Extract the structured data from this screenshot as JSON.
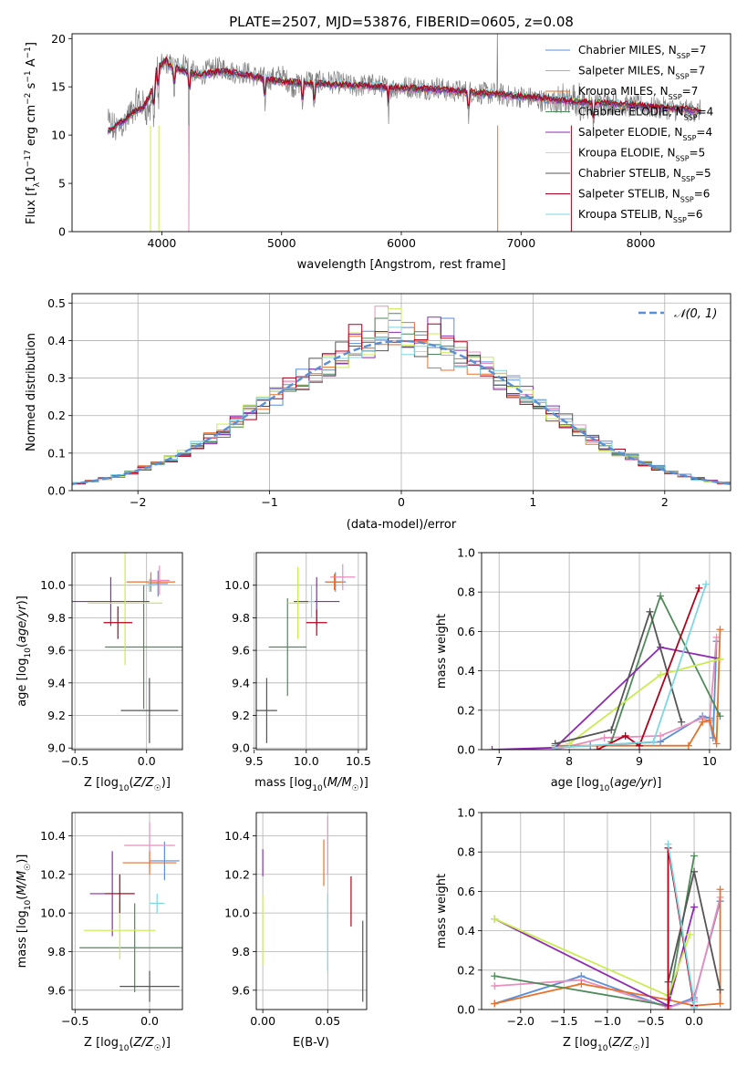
{
  "title": "PLATE=2507, MJD=53876, FIBERID=0605, z=0.08",
  "series_styles": [
    {
      "name": "Chabrier MILES, N_SSP=7",
      "color": "#5a8fd6"
    },
    {
      "name": "Salpeter MILES, N_SSP=7",
      "color": "#e98fbe"
    },
    {
      "name": "Kroupa MILES, N_SSP=7",
      "color": "#e8722a"
    },
    {
      "name": "Chabrier ELODIE, N_SSP=4",
      "color": "#4e8a5a"
    },
    {
      "name": "Salpeter ELODIE, N_SSP=4",
      "color": "#8e2bb0"
    },
    {
      "name": "Kroupa ELODIE, N_SSP=5",
      "color": "#c9ec4f"
    },
    {
      "name": "Chabrier STELIB, N_SSP=5",
      "color": "#555555"
    },
    {
      "name": "Salpeter STELIB, N_SSP=6",
      "color": "#b3001b"
    },
    {
      "name": "Kroupa STELIB, N_SSP=6",
      "color": "#7fd6e0"
    }
  ],
  "chart_data": [
    {
      "id": "spectrum",
      "type": "line",
      "xlabel": "wavelength [Angstrom, rest frame]",
      "ylabel": "Flux [f_λ 10^-17 erg cm^-2 s^-1 A^-1]",
      "xlim": [
        3250,
        8750
      ],
      "ylim": [
        0,
        20.5
      ],
      "xticks": [
        4000,
        5000,
        6000,
        7000,
        8000
      ],
      "yticks": [
        0,
        5,
        10,
        15,
        20
      ],
      "legend_placement": "right",
      "legend": [
        {
          "label": "Chabrier MILES, N",
          "sub": "SSP",
          "tail": "=7"
        },
        {
          "label": "Salpeter MILES, N",
          "sub": "SSP",
          "tail": "=7"
        },
        {
          "label": "Kroupa MILES, N",
          "sub": "SSP",
          "tail": "=7"
        },
        {
          "label": "Chabrier ELODIE, N",
          "sub": "SSP",
          "tail": "=4"
        },
        {
          "label": "Salpeter ELODIE, N",
          "sub": "SSP",
          "tail": "=4"
        },
        {
          "label": "Kroupa ELODIE, N",
          "sub": "SSP",
          "tail": "=5"
        },
        {
          "label": "Chabrier STELIB, N",
          "sub": "SSP",
          "tail": "=5"
        },
        {
          "label": "Salpeter STELIB, N",
          "sub": "SSP",
          "tail": "=6"
        },
        {
          "label": "Kroupa STELIB, N",
          "sub": "SSP",
          "tail": "=6"
        }
      ],
      "data_outline": {
        "x": [
          3550,
          3600,
          3700,
          3800,
          3900,
          3950,
          4000,
          4050,
          4100,
          4200,
          4300,
          4400,
          4500,
          4600,
          4700,
          4800,
          4900,
          5000,
          5100,
          5200,
          5300,
          5400,
          5500,
          5600,
          5700,
          5800,
          5900,
          6000,
          6100,
          6200,
          6300,
          6400,
          6500,
          6600,
          6700,
          6800,
          6900,
          7000,
          7100,
          7200,
          7300,
          7400,
          7500,
          7600,
          7700,
          7800,
          7900,
          8000,
          8100,
          8200,
          8300,
          8400,
          8500
        ],
        "y": [
          11.5,
          10.5,
          11.5,
          13.5,
          12.5,
          16.0,
          17.0,
          17.5,
          17.0,
          17.5,
          16.0,
          16.8,
          17.0,
          16.5,
          16.5,
          16.0,
          15.8,
          16.2,
          15.0,
          15.8,
          15.5,
          15.5,
          15.4,
          15.0,
          15.2,
          15.2,
          14.8,
          15.0,
          15.0,
          14.8,
          15.0,
          14.5,
          14.6,
          14.5,
          14.3,
          14.3,
          14.0,
          14.0,
          13.8,
          13.5,
          13.5,
          13.5,
          13.4,
          13.3,
          13.3,
          13.2,
          13.0,
          13.0,
          12.8,
          12.8,
          12.6,
          12.5,
          12.5
        ]
      },
      "model_outline": {
        "x": [
          3550,
          3650,
          3750,
          3850,
          3950,
          4050,
          4150,
          4300,
          4500,
          4700,
          4900,
          5100,
          5300,
          5500,
          5700,
          5900,
          6100,
          6300,
          6500,
          6700,
          6900,
          7100,
          7300,
          7500,
          7700,
          7900,
          8100,
          8300,
          8500
        ],
        "y": [
          11.0,
          11.8,
          12.8,
          13.5,
          16.0,
          17.2,
          16.8,
          16.2,
          16.6,
          16.2,
          15.7,
          15.4,
          15.3,
          15.2,
          15.1,
          14.9,
          14.8,
          14.7,
          14.5,
          14.3,
          14.1,
          13.9,
          13.6,
          13.4,
          13.3,
          13.1,
          12.9,
          12.7,
          12.5
        ]
      }
    },
    {
      "id": "residuals",
      "type": "histogram",
      "xlabel": "(data-model)/error",
      "ylabel": "Normed distribution",
      "xlim": [
        -2.5,
        2.5
      ],
      "ylim": [
        0,
        0.525
      ],
      "xticks": [
        -2,
        -1,
        0,
        1,
        2
      ],
      "yticks": [
        0.0,
        0.1,
        0.2,
        0.3,
        0.4,
        0.5
      ],
      "grid": true,
      "legend_placement": "top-right",
      "reference_curve": {
        "name": "N(0,1)",
        "label": "𝒩(0, 1)",
        "color": "#5a8fd6"
      }
    },
    {
      "id": "age-vs-Z",
      "type": "errorbar",
      "xlabel": "Z [log10(Z/Z☉)]",
      "ylabel": "age [log10(age/yr)]",
      "xlim": [
        -0.52,
        0.25
      ],
      "ylim": [
        8.99,
        10.2
      ],
      "xticks": [
        -0.5,
        0.0
      ],
      "yticks": [
        9.0,
        9.2,
        9.4,
        9.6,
        9.8,
        10.0
      ],
      "grid": true,
      "points": [
        {
          "series": 0,
          "x": 0.08,
          "xerr": 0.07,
          "y": 10.01,
          "yerr": 0.08
        },
        {
          "series": 1,
          "x": 0.09,
          "xerr": 0.07,
          "y": 10.03,
          "yerr": 0.09
        },
        {
          "series": 2,
          "x": 0.03,
          "xerr": 0.17,
          "y": 10.02,
          "yerr": 0.06
        },
        {
          "series": 3,
          "x": -0.02,
          "xerr": 0.27,
          "y": 9.62,
          "yerr": 0.38
        },
        {
          "series": 4,
          "x": -0.25,
          "xerr": 0.27,
          "y": 9.9,
          "yerr": 0.15
        },
        {
          "series": 5,
          "x": -0.15,
          "xerr": 0.26,
          "y": 9.89,
          "yerr": 0.38
        },
        {
          "series": 6,
          "x": 0.02,
          "xerr": 0.2,
          "y": 9.23,
          "yerr": 0.2
        },
        {
          "series": 7,
          "x": -0.2,
          "xerr": 0.1,
          "y": 9.77,
          "yerr": 0.1
        },
        {
          "series": 8,
          "x": 0.02,
          "xerr": 0.04,
          "y": 10.0,
          "yerr": 0.04
        }
      ]
    },
    {
      "id": "age-vs-mass",
      "type": "errorbar",
      "xlabel": "mass [log10(M/M☉)]",
      "ylabel": "",
      "xlim": [
        9.52,
        10.58
      ],
      "ylim": [
        8.99,
        10.2
      ],
      "xticks": [
        9.5,
        10.0,
        10.5
      ],
      "yticks": [
        9.0,
        9.2,
        9.4,
        9.6,
        9.8,
        10.0
      ],
      "grid": true,
      "points": [
        {
          "series": 0,
          "x": 10.28,
          "xerr": 0.1,
          "y": 10.02,
          "yerr": 0.06
        },
        {
          "series": 1,
          "x": 10.35,
          "xerr": 0.12,
          "y": 10.05,
          "yerr": 0.08
        },
        {
          "series": 2,
          "x": 10.27,
          "xerr": 0.08,
          "y": 10.02,
          "yerr": 0.05
        },
        {
          "series": 3,
          "x": 9.82,
          "xerr": 0.18,
          "y": 9.62,
          "yerr": 0.3
        },
        {
          "series": 4,
          "x": 10.1,
          "xerr": 0.22,
          "y": 9.9,
          "yerr": 0.15
        },
        {
          "series": 5,
          "x": 9.92,
          "xerr": 0.1,
          "y": 9.89,
          "yerr": 0.22
        },
        {
          "series": 6,
          "x": 9.62,
          "xerr": 0.1,
          "y": 9.23,
          "yerr": 0.2
        },
        {
          "series": 7,
          "x": 10.1,
          "xerr": 0.1,
          "y": 9.77,
          "yerr": 0.08
        },
        {
          "series": 8,
          "x": 10.05,
          "xerr": 0.03,
          "y": 9.9,
          "yerr": 0.1
        }
      ]
    },
    {
      "id": "massweight-vs-age",
      "type": "line",
      "xlabel": "age [log10(age/yr)]",
      "ylabel": "mass weight",
      "xlim": [
        6.75,
        10.3
      ],
      "ylim": [
        0,
        1.0
      ],
      "xticks": [
        7,
        8,
        9,
        10
      ],
      "yticks": [
        0.0,
        0.2,
        0.4,
        0.6,
        0.8,
        1.0
      ],
      "grid": true,
      "series": [
        {
          "series": 0,
          "x": [
            7.8,
            8.3,
            9.3,
            9.9,
            10.0,
            10.05,
            10.1
          ],
          "y": [
            0.01,
            0.02,
            0.04,
            0.17,
            0.16,
            0.06,
            0.55
          ]
        },
        {
          "series": 1,
          "x": [
            7.8,
            8.5,
            9.3,
            9.9,
            10.0,
            10.1
          ],
          "y": [
            0.0,
            0.06,
            0.07,
            0.16,
            0.14,
            0.57
          ]
        },
        {
          "series": 2,
          "x": [
            7.8,
            9.7,
            9.9,
            10.0,
            10.1,
            10.15
          ],
          "y": [
            0.02,
            0.02,
            0.14,
            0.15,
            0.03,
            0.61
          ]
        },
        {
          "series": 3,
          "x": [
            8.6,
            9.3,
            10.15
          ],
          "y": [
            0.04,
            0.78,
            0.17
          ]
        },
        {
          "series": 4,
          "x": [
            6.9,
            7.8,
            9.3,
            10.15
          ],
          "y": [
            0.0,
            0.01,
            0.52,
            0.46
          ]
        },
        {
          "series": 5,
          "x": [
            8.0,
            9.3,
            10.15
          ],
          "y": [
            0.03,
            0.38,
            0.46
          ]
        },
        {
          "series": 6,
          "x": [
            7.8,
            8.6,
            9.15,
            9.6
          ],
          "y": [
            0.03,
            0.1,
            0.7,
            0.14
          ]
        },
        {
          "series": 7,
          "x": [
            8.4,
            8.8,
            9.0,
            9.85
          ],
          "y": [
            0.0,
            0.07,
            0.02,
            0.82
          ]
        },
        {
          "series": 8,
          "x": [
            7.8,
            9.2,
            9.95
          ],
          "y": [
            0.01,
            0.04,
            0.84
          ]
        }
      ]
    },
    {
      "id": "mass-vs-Z",
      "type": "errorbar",
      "xlabel": "Z [log10(Z/Z☉)]",
      "ylabel": "mass [log10(M/M☉)]",
      "xlim": [
        -0.52,
        0.22
      ],
      "ylim": [
        9.5,
        10.52
      ],
      "xticks": [
        -0.5,
        0.0
      ],
      "yticks": [
        9.6,
        9.8,
        10.0,
        10.2,
        10.4
      ],
      "grid": true,
      "points": [
        {
          "series": 0,
          "x": 0.1,
          "xerr": 0.1,
          "y": 10.27,
          "yerr": 0.1
        },
        {
          "series": 1,
          "x": 0.0,
          "xerr": 0.17,
          "y": 10.35,
          "yerr": 0.12
        },
        {
          "series": 2,
          "x": 0.0,
          "xerr": 0.18,
          "y": 10.26,
          "yerr": 0.06
        },
        {
          "series": 3,
          "x": -0.1,
          "xerr": 0.37,
          "y": 9.82,
          "yerr": 0.23
        },
        {
          "series": 4,
          "x": -0.25,
          "xerr": 0.15,
          "y": 10.1,
          "yerr": 0.22
        },
        {
          "series": 5,
          "x": -0.2,
          "xerr": 0.24,
          "y": 9.91,
          "yerr": 0.15
        },
        {
          "series": 6,
          "x": 0.0,
          "xerr": 0.2,
          "y": 9.62,
          "yerr": 0.08
        },
        {
          "series": 7,
          "x": -0.2,
          "xerr": 0.1,
          "y": 10.1,
          "yerr": 0.1
        },
        {
          "series": 8,
          "x": 0.05,
          "xerr": 0.05,
          "y": 10.05,
          "yerr": 0.05
        }
      ]
    },
    {
      "id": "mass-vs-EBV",
      "type": "errorbar",
      "xlabel": "E(B-V)",
      "ylabel": "",
      "xlim": [
        -0.005,
        0.08
      ],
      "ylim": [
        9.5,
        10.52
      ],
      "xticks": [
        0.0,
        0.05
      ],
      "yticks": [
        9.6,
        9.8,
        10.0,
        10.2,
        10.4
      ],
      "grid": true,
      "points": [
        {
          "series": 4,
          "x": 0.0,
          "y": 10.26,
          "yerr": 0.07
        },
        {
          "series": 5,
          "x": 0.0,
          "y": 9.91,
          "yerr": 0.18
        },
        {
          "series": 2,
          "x": 0.047,
          "y": 10.26,
          "yerr": 0.12
        },
        {
          "series": 1,
          "x": 0.05,
          "y": 10.35,
          "yerr": 0.15
        },
        {
          "series": 8,
          "x": 0.05,
          "y": 9.9,
          "yerr": 0.2
        },
        {
          "series": 7,
          "x": 0.068,
          "y": 10.06,
          "yerr": 0.13
        },
        {
          "series": 6,
          "x": 0.077,
          "y": 9.75,
          "yerr": 0.21
        }
      ]
    },
    {
      "id": "massweight-vs-Z",
      "type": "line",
      "xlabel": "Z [log10(Z/Z☉)]",
      "ylabel": "mass weight",
      "xlim": [
        -2.45,
        0.42
      ],
      "ylim": [
        0,
        1.0
      ],
      "xticks": [
        -2.0,
        -1.5,
        -1.0,
        -0.5,
        0.0
      ],
      "yticks": [
        0.0,
        0.2,
        0.4,
        0.6,
        0.8,
        1.0
      ],
      "grid": true,
      "series": [
        {
          "series": 0,
          "x": [
            -2.3,
            -1.3,
            -0.3,
            0.0,
            0.3
          ],
          "y": [
            0.03,
            0.17,
            0.01,
            0.06,
            0.55
          ]
        },
        {
          "series": 1,
          "x": [
            -2.3,
            -1.3,
            -0.3,
            0.0,
            0.3
          ],
          "y": [
            0.12,
            0.15,
            0.01,
            0.05,
            0.57
          ]
        },
        {
          "series": 2,
          "x": [
            -2.3,
            -1.3,
            -0.3,
            0.0,
            0.3,
            0.3
          ],
          "y": [
            0.03,
            0.13,
            0.05,
            0.02,
            0.03,
            0.61
          ]
        },
        {
          "series": 3,
          "x": [
            -2.3,
            -0.3,
            0.0
          ],
          "y": [
            0.17,
            0.02,
            0.78
          ]
        },
        {
          "series": 4,
          "x": [
            -2.3,
            -0.3,
            0.0
          ],
          "y": [
            0.46,
            0.02,
            0.52
          ]
        },
        {
          "series": 5,
          "x": [
            -2.3,
            -0.3,
            -0.05
          ],
          "y": [
            0.46,
            0.07,
            0.38
          ]
        },
        {
          "series": 6,
          "x": [
            -0.3,
            0.0,
            0.3
          ],
          "y": [
            0.14,
            0.7,
            0.1
          ]
        },
        {
          "series": 7,
          "x": [
            -0.3,
            -0.3,
            0.0
          ],
          "y": [
            0.0,
            0.82,
            0.02
          ]
        },
        {
          "series": 8,
          "x": [
            -0.3,
            0.0,
            0.0
          ],
          "y": [
            0.84,
            0.04,
            0.01
          ]
        }
      ]
    }
  ]
}
